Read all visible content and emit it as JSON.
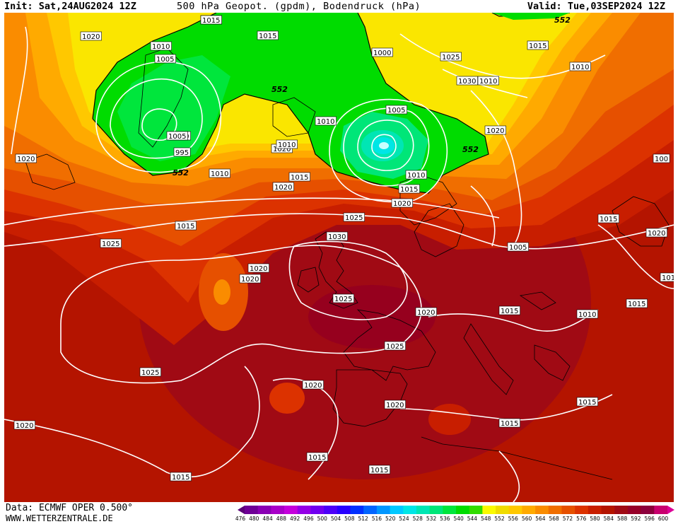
{
  "header": {
    "init": "Init: Sat,24AUG2024 12Z",
    "title": "500 hPa Geopot. (gpdm), Bodendruck (hPa)",
    "valid": "Valid: Tue,03SEP2024 12Z"
  },
  "footer": {
    "source": "Data: ECMWF OPER 0.500°",
    "site": "WWW.WETTERZENTRALE.DE"
  },
  "colorbar": {
    "labels": [
      "476",
      "480",
      "484",
      "488",
      "492",
      "496",
      "500",
      "504",
      "508",
      "512",
      "516",
      "520",
      "524",
      "528",
      "532",
      "536",
      "540",
      "544",
      "548",
      "552",
      "556",
      "560",
      "564",
      "568",
      "572",
      "576",
      "580",
      "584",
      "588",
      "592",
      "596",
      "600"
    ],
    "colors": [
      "#5a0078",
      "#6e0096",
      "#8a00b4",
      "#a800c8",
      "#c400dc",
      "#9400e6",
      "#7000f0",
      "#4c00f8",
      "#2800ff",
      "#0030ff",
      "#0064ff",
      "#0096ff",
      "#00c8ff",
      "#00e6e6",
      "#00e6b4",
      "#00e678",
      "#00e63c",
      "#00dc00",
      "#32dc00",
      "#fafa00",
      "#f0dc00",
      "#ffc800",
      "#ffaa00",
      "#fa8c00",
      "#f06e00",
      "#e65000",
      "#dc3200",
      "#c81e00",
      "#b41400",
      "#a00a14",
      "#960028",
      "#8c003c",
      "#c8006e",
      "#dc0096"
    ]
  },
  "map_labels": {
    "geopot_552": "552",
    "isobars": [
      "1015",
      "1015",
      "1010",
      "1005",
      "1000",
      "995",
      "1020",
      "1025",
      "1020",
      "1015",
      "1010",
      "1005",
      "1020",
      "1025",
      "1020",
      "1015",
      "1010",
      "1005",
      "1000",
      "1010",
      "1015",
      "1020",
      "1025",
      "1030",
      "1030",
      "1025",
      "1020",
      "1015",
      "1010",
      "1005",
      "1020",
      "1015",
      "1025",
      "1020",
      "1025",
      "1020",
      "1015",
      "1020",
      "1015",
      "1015",
      "1015",
      "1020",
      "1010",
      "1015",
      "1010",
      "1010",
      "1015",
      "1020",
      "1015",
      "1010",
      "100",
      "1020",
      "1015"
    ]
  }
}
